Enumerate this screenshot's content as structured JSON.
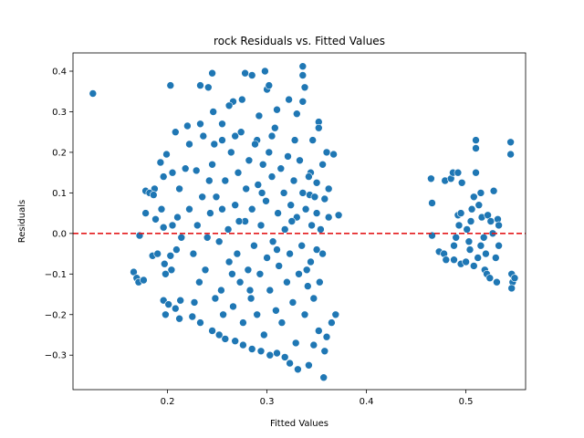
{
  "chart_data": {
    "type": "scatter",
    "title": "rock Residuals vs. Fitted Values",
    "xlabel": "Fitted Values",
    "ylabel": "Residuals",
    "xlim": [
      0.105,
      0.56
    ],
    "ylim": [
      -0.385,
      0.445
    ],
    "xticks": [
      0.2,
      0.3,
      0.4,
      0.5
    ],
    "yticks": [
      -0.3,
      -0.2,
      -0.1,
      0.0,
      0.1,
      0.2,
      0.3,
      0.4
    ],
    "xtick_labels": [
      "0.2",
      "0.3",
      "0.4",
      "0.5"
    ],
    "ytick_labels": [
      "−0.3",
      "−0.2",
      "−0.1",
      "0.0",
      "0.1",
      "0.2",
      "0.3",
      "0.4"
    ],
    "reference_line": {
      "y": 0.0,
      "color": "#e41a1c",
      "style": "dashed"
    },
    "point_color": "#1f77b4",
    "grid": false,
    "series": [
      {
        "values": [
          [
            0.125,
            0.345
          ],
          [
            0.203,
            0.365
          ],
          [
            0.245,
            0.395
          ],
          [
            0.278,
            0.395
          ],
          [
            0.298,
            0.4
          ],
          [
            0.336,
            0.412
          ],
          [
            0.233,
            0.365
          ],
          [
            0.241,
            0.36
          ],
          [
            0.285,
            0.39
          ],
          [
            0.3,
            0.355
          ],
          [
            0.302,
            0.365
          ],
          [
            0.336,
            0.39
          ],
          [
            0.338,
            0.36
          ],
          [
            0.266,
            0.325
          ],
          [
            0.275,
            0.33
          ],
          [
            0.31,
            0.305
          ],
          [
            0.322,
            0.33
          ],
          [
            0.336,
            0.325
          ],
          [
            0.22,
            0.265
          ],
          [
            0.233,
            0.27
          ],
          [
            0.246,
            0.3
          ],
          [
            0.255,
            0.27
          ],
          [
            0.262,
            0.315
          ],
          [
            0.292,
            0.29
          ],
          [
            0.33,
            0.295
          ],
          [
            0.352,
            0.275
          ],
          [
            0.352,
            0.26
          ],
          [
            0.208,
            0.25
          ],
          [
            0.222,
            0.22
          ],
          [
            0.236,
            0.24
          ],
          [
            0.247,
            0.22
          ],
          [
            0.255,
            0.23
          ],
          [
            0.268,
            0.24
          ],
          [
            0.29,
            0.23
          ],
          [
            0.305,
            0.24
          ],
          [
            0.328,
            0.23
          ],
          [
            0.346,
            0.23
          ],
          [
            0.36,
            0.2
          ],
          [
            0.367,
            0.195
          ],
          [
            0.356,
            0.17
          ],
          [
            0.344,
            0.15
          ],
          [
            0.193,
            0.175
          ],
          [
            0.199,
            0.195
          ],
          [
            0.205,
            0.15
          ],
          [
            0.218,
            0.16
          ],
          [
            0.229,
            0.155
          ],
          [
            0.242,
            0.13
          ],
          [
            0.212,
            0.11
          ],
          [
            0.196,
            0.14
          ],
          [
            0.187,
            0.11
          ],
          [
            0.178,
            0.105
          ],
          [
            0.182,
            0.1
          ],
          [
            0.186,
            0.095
          ],
          [
            0.194,
            0.06
          ],
          [
            0.178,
            0.05
          ],
          [
            0.188,
            0.035
          ],
          [
            0.196,
            0.015
          ],
          [
            0.172,
            -0.005
          ],
          [
            0.21,
            0.04
          ],
          [
            0.205,
            0.02
          ],
          [
            0.214,
            -0.01
          ],
          [
            0.209,
            -0.04
          ],
          [
            0.203,
            -0.055
          ],
          [
            0.197,
            -0.075
          ],
          [
            0.204,
            -0.09
          ],
          [
            0.198,
            -0.1
          ],
          [
            0.185,
            -0.055
          ],
          [
            0.19,
            -0.05
          ],
          [
            0.166,
            -0.095
          ],
          [
            0.169,
            -0.11
          ],
          [
            0.171,
            -0.12
          ],
          [
            0.176,
            -0.115
          ],
          [
            0.196,
            -0.165
          ],
          [
            0.201,
            -0.175
          ],
          [
            0.213,
            -0.165
          ],
          [
            0.208,
            -0.185
          ],
          [
            0.198,
            -0.2
          ],
          [
            0.212,
            -0.21
          ],
          [
            0.225,
            -0.205
          ],
          [
            0.233,
            -0.22
          ],
          [
            0.245,
            -0.24
          ],
          [
            0.252,
            -0.25
          ],
          [
            0.258,
            -0.26
          ],
          [
            0.268,
            -0.265
          ],
          [
            0.276,
            -0.275
          ],
          [
            0.285,
            -0.285
          ],
          [
            0.294,
            -0.29
          ],
          [
            0.303,
            -0.3
          ],
          [
            0.31,
            -0.295
          ],
          [
            0.318,
            -0.305
          ],
          [
            0.323,
            -0.32
          ],
          [
            0.331,
            -0.335
          ],
          [
            0.342,
            -0.325
          ],
          [
            0.357,
            -0.355
          ],
          [
            0.358,
            -0.29
          ],
          [
            0.347,
            -0.275
          ],
          [
            0.36,
            -0.255
          ],
          [
            0.352,
            -0.24
          ],
          [
            0.365,
            -0.22
          ],
          [
            0.369,
            -0.2
          ],
          [
            0.372,
            0.045
          ],
          [
            0.362,
            0.04
          ],
          [
            0.358,
            0.085
          ],
          [
            0.362,
            0.11
          ],
          [
            0.35,
            0.125
          ],
          [
            0.343,
            0.095
          ],
          [
            0.35,
            0.05
          ],
          [
            0.222,
            0.06
          ],
          [
            0.23,
            0.02
          ],
          [
            0.226,
            -0.05
          ],
          [
            0.232,
            -0.12
          ],
          [
            0.227,
            -0.17
          ],
          [
            0.238,
            -0.09
          ],
          [
            0.243,
            0.05
          ],
          [
            0.245,
            0.17
          ],
          [
            0.249,
            0.09
          ],
          [
            0.252,
            -0.02
          ],
          [
            0.254,
            -0.14
          ],
          [
            0.256,
            -0.2
          ],
          [
            0.258,
            0.13
          ],
          [
            0.261,
            0.01
          ],
          [
            0.262,
            -0.07
          ],
          [
            0.264,
            0.2
          ],
          [
            0.266,
            -0.18
          ],
          [
            0.268,
            0.07
          ],
          [
            0.27,
            -0.05
          ],
          [
            0.271,
            0.15
          ],
          [
            0.273,
            -0.12
          ],
          [
            0.274,
            0.25
          ],
          [
            0.276,
            -0.22
          ],
          [
            0.278,
            0.03
          ],
          [
            0.279,
            0.11
          ],
          [
            0.281,
            -0.09
          ],
          [
            0.282,
            0.18
          ],
          [
            0.284,
            -0.16
          ],
          [
            0.285,
            0.06
          ],
          [
            0.287,
            -0.03
          ],
          [
            0.288,
            0.22
          ],
          [
            0.29,
            -0.2
          ],
          [
            0.291,
            0.12
          ],
          [
            0.293,
            -0.1
          ],
          [
            0.294,
            0.02
          ],
          [
            0.296,
            0.17
          ],
          [
            0.297,
            -0.25
          ],
          [
            0.299,
            0.08
          ],
          [
            0.3,
            -0.06
          ],
          [
            0.302,
            0.2
          ],
          [
            0.303,
            -0.14
          ],
          [
            0.305,
            0.14
          ],
          [
            0.306,
            -0.02
          ],
          [
            0.308,
            0.26
          ],
          [
            0.309,
            -0.19
          ],
          [
            0.311,
            0.05
          ],
          [
            0.312,
            -0.08
          ],
          [
            0.314,
            0.16
          ],
          [
            0.315,
            -0.22
          ],
          [
            0.317,
            0.1
          ],
          [
            0.318,
            0.01
          ],
          [
            0.32,
            -0.12
          ],
          [
            0.321,
            0.19
          ],
          [
            0.323,
            -0.05
          ],
          [
            0.324,
            0.07
          ],
          [
            0.326,
            -0.17
          ],
          [
            0.327,
            0.13
          ],
          [
            0.329,
            -0.27
          ],
          [
            0.33,
            0.04
          ],
          [
            0.332,
            -0.1
          ],
          [
            0.333,
            0.18
          ],
          [
            0.335,
            -0.03
          ],
          [
            0.336,
            0.1
          ],
          [
            0.338,
            -0.2
          ],
          [
            0.339,
            0.06
          ],
          [
            0.341,
            -0.13
          ],
          [
            0.342,
            0.14
          ],
          [
            0.344,
            -0.07
          ],
          [
            0.345,
            0.02
          ],
          [
            0.347,
            -0.16
          ],
          [
            0.348,
            0.09
          ],
          [
            0.35,
            -0.04
          ],
          [
            0.24,
            -0.01
          ],
          [
            0.235,
            0.09
          ],
          [
            0.248,
            -0.16
          ],
          [
            0.255,
            0.06
          ],
          [
            0.265,
            -0.1
          ],
          [
            0.272,
            0.03
          ],
          [
            0.283,
            -0.14
          ],
          [
            0.295,
            0.1
          ],
          [
            0.31,
            -0.04
          ],
          [
            0.325,
            0.03
          ],
          [
            0.34,
            -0.09
          ],
          [
            0.353,
            -0.12
          ],
          [
            0.356,
            -0.05
          ],
          [
            0.354,
            0.01
          ],
          [
            0.465,
            0.135
          ],
          [
            0.466,
            0.075
          ],
          [
            0.466,
            -0.005
          ],
          [
            0.473,
            -0.045
          ],
          [
            0.478,
            -0.05
          ],
          [
            0.48,
            -0.065
          ],
          [
            0.479,
            0.13
          ],
          [
            0.485,
            0.135
          ],
          [
            0.487,
            0.15
          ],
          [
            0.492,
            0.15
          ],
          [
            0.496,
            0.125
          ],
          [
            0.492,
            0.045
          ],
          [
            0.495,
            0.05
          ],
          [
            0.493,
            0.02
          ],
          [
            0.49,
            -0.01
          ],
          [
            0.488,
            -0.03
          ],
          [
            0.488,
            -0.065
          ],
          [
            0.495,
            -0.075
          ],
          [
            0.5,
            -0.07
          ],
          [
            0.501,
            0.01
          ],
          [
            0.503,
            -0.02
          ],
          [
            0.505,
            0.03
          ],
          [
            0.506,
            0.06
          ],
          [
            0.508,
            0.09
          ],
          [
            0.51,
            0.15
          ],
          [
            0.51,
            0.23
          ],
          [
            0.51,
            0.21
          ],
          [
            0.513,
            0.07
          ],
          [
            0.515,
            0.1
          ],
          [
            0.516,
            0.04
          ],
          [
            0.518,
            -0.01
          ],
          [
            0.52,
            -0.05
          ],
          [
            0.519,
            -0.09
          ],
          [
            0.521,
            -0.1
          ],
          [
            0.524,
            -0.11
          ],
          [
            0.522,
            0.045
          ],
          [
            0.525,
            0.03
          ],
          [
            0.528,
            0.105
          ],
          [
            0.527,
            0.0
          ],
          [
            0.53,
            -0.06
          ],
          [
            0.531,
            -0.12
          ],
          [
            0.532,
            0.035
          ],
          [
            0.533,
            0.02
          ],
          [
            0.533,
            -0.03
          ],
          [
            0.512,
            -0.06
          ],
          [
            0.508,
            -0.08
          ],
          [
            0.504,
            -0.04
          ],
          [
            0.515,
            -0.03
          ],
          [
            0.545,
            0.225
          ],
          [
            0.545,
            0.195
          ],
          [
            0.546,
            -0.1
          ],
          [
            0.547,
            -0.12
          ],
          [
            0.546,
            -0.135
          ],
          [
            0.549,
            -0.11
          ]
        ]
      }
    ]
  }
}
